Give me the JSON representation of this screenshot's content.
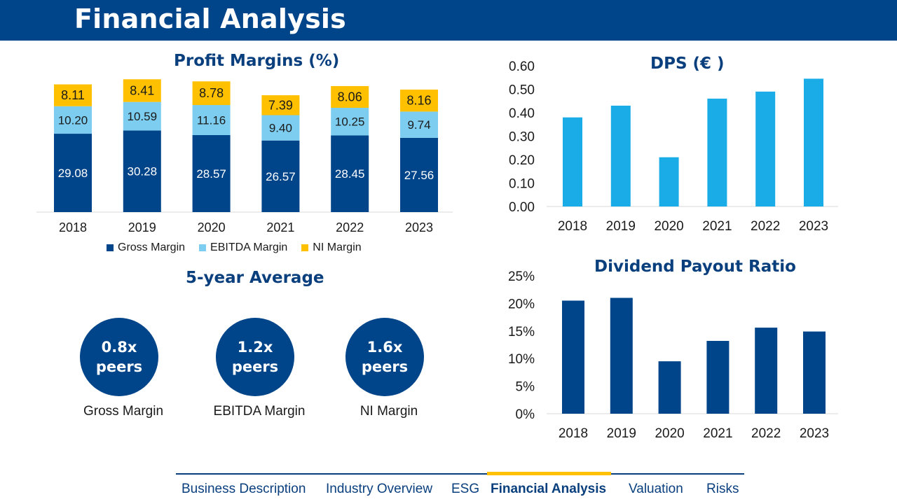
{
  "header": {
    "title": "Financial Analysis"
  },
  "colors": {
    "navy": "#004489",
    "light_blue": "#7ccdef",
    "gold": "#ffc000",
    "dps_blue": "#1aace6"
  },
  "averages": {
    "title": "5-year Average",
    "items": [
      {
        "value": "0.8x\npeers",
        "label": "Gross Margin"
      },
      {
        "value": "1.2x\npeers",
        "label": "EBITDA Margin"
      },
      {
        "value": "1.6x\npeers",
        "label": "NI Margin"
      }
    ]
  },
  "nav": {
    "items": [
      {
        "label": "Business Description"
      },
      {
        "label": "Industry Overview"
      },
      {
        "label": "ESG"
      },
      {
        "label": "Financial Analysis",
        "active": true
      },
      {
        "label": "Valuation"
      },
      {
        "label": "Risks"
      }
    ]
  },
  "chart_data": [
    {
      "type": "bar",
      "stacked": true,
      "title": "Profit Margins (%)",
      "categories": [
        "2018",
        "2019",
        "2020",
        "2021",
        "2022",
        "2023"
      ],
      "series": [
        {
          "name": "Gross Margin",
          "values": [
            29.08,
            30.28,
            28.57,
            26.57,
            28.45,
            27.56
          ],
          "labels": [
            "29.08",
            "30.28",
            "28.57",
            "26.57",
            "28.45",
            "27.56"
          ]
        },
        {
          "name": "EBITDA Margin",
          "values": [
            10.2,
            10.59,
            11.16,
            9.4,
            10.25,
            9.74
          ],
          "labels": [
            "10.20",
            "10.59",
            "11.16",
            "9.40",
            "10.25",
            "9.74"
          ]
        },
        {
          "name": "NI Margin",
          "values": [
            8.11,
            8.41,
            8.78,
            7.39,
            8.06,
            8.16
          ],
          "labels": [
            "8.11",
            "8.41",
            "8.78",
            "7.39",
            "8.06",
            "8.16"
          ]
        }
      ],
      "legend": "bottom"
    },
    {
      "type": "bar",
      "title": "DPS (€ )",
      "categories": [
        "2018",
        "2019",
        "2020",
        "2021",
        "2022",
        "2023"
      ],
      "values": [
        0.38,
        0.43,
        0.21,
        0.46,
        0.49,
        0.545
      ],
      "ylim": [
        0,
        0.6
      ],
      "yticks": [
        "0.00",
        "0.10",
        "0.20",
        "0.30",
        "0.40",
        "0.50",
        "0.60"
      ]
    },
    {
      "type": "bar",
      "title": "Dividend Payout Ratio",
      "categories": [
        "2018",
        "2019",
        "2020",
        "2021",
        "2022",
        "2023"
      ],
      "values": [
        20.5,
        21.0,
        9.5,
        13.2,
        15.6,
        14.9
      ],
      "ylim": [
        0,
        25
      ],
      "yticks": [
        "0%",
        "5%",
        "10%",
        "15%",
        "20%",
        "25%"
      ]
    }
  ]
}
